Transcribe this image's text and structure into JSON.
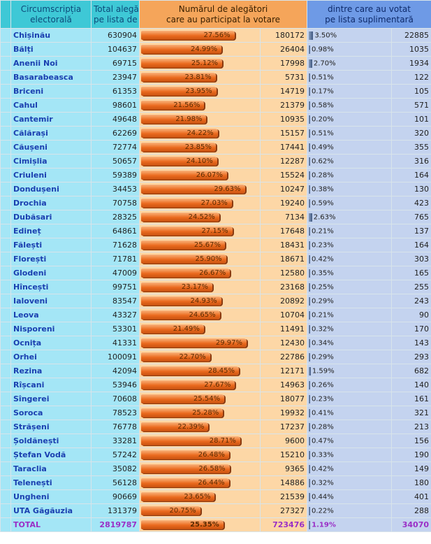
{
  "headers": {
    "district": [
      "Circumscripția",
      "electorală"
    ],
    "total": [
      "Total alegători",
      "pe lista de bază"
    ],
    "participated": [
      "Numărul de alegători",
      "care au participat la votare"
    ],
    "supplementary": [
      "dintre care au votat",
      "pe lista suplimentară"
    ]
  },
  "rows": [
    [
      "Chișinău",
      "630904",
      "27.56%",
      "180172",
      "3.50%",
      "22885"
    ],
    [
      "Bălți",
      "104637",
      "24.99%",
      "26404",
      "0.98%",
      "1035"
    ],
    [
      "Anenii Noi",
      "69715",
      "25.12%",
      "17998",
      "2.70%",
      "1934"
    ],
    [
      "Basarabeasca",
      "23947",
      "23.81%",
      "5731",
      "0.51%",
      "122"
    ],
    [
      "Briceni",
      "61353",
      "23.95%",
      "14719",
      "0.17%",
      "105"
    ],
    [
      "Cahul",
      "98601",
      "21.56%",
      "21379",
      "0.58%",
      "571"
    ],
    [
      "Cantemir",
      "49648",
      "21.98%",
      "10935",
      "0.20%",
      "101"
    ],
    [
      "Călărași",
      "62269",
      "24.22%",
      "15157",
      "0.51%",
      "320"
    ],
    [
      "Căușeni",
      "72774",
      "23.85%",
      "17441",
      "0.49%",
      "355"
    ],
    [
      "Cimișlia",
      "50657",
      "24.10%",
      "12287",
      "0.62%",
      "316"
    ],
    [
      "Criuleni",
      "59389",
      "26.07%",
      "15524",
      "0.28%",
      "164"
    ],
    [
      "Dondușeni",
      "34453",
      "29.63%",
      "10247",
      "0.38%",
      "130"
    ],
    [
      "Drochia",
      "70758",
      "27.03%",
      "19240",
      "0.59%",
      "423"
    ],
    [
      "Dubăsari",
      "28325",
      "24.52%",
      "7134",
      "2.63%",
      "765"
    ],
    [
      "Edineț",
      "64861",
      "27.15%",
      "17648",
      "0.21%",
      "137"
    ],
    [
      "Fălești",
      "71628",
      "25.67%",
      "18431",
      "0.23%",
      "164"
    ],
    [
      "Florești",
      "71781",
      "25.90%",
      "18671",
      "0.42%",
      "303"
    ],
    [
      "Glodeni",
      "47009",
      "26.67%",
      "12580",
      "0.35%",
      "165"
    ],
    [
      "Hîncești",
      "99751",
      "23.17%",
      "23168",
      "0.25%",
      "255"
    ],
    [
      "Ialoveni",
      "83547",
      "24.93%",
      "20892",
      "0.29%",
      "243"
    ],
    [
      "Leova",
      "43327",
      "24.65%",
      "10704",
      "0.21%",
      "90"
    ],
    [
      "Nisporeni",
      "53301",
      "21.49%",
      "11491",
      "0.32%",
      "170"
    ],
    [
      "Ocnița",
      "41331",
      "29.97%",
      "12430",
      "0.34%",
      "143"
    ],
    [
      "Orhei",
      "100091",
      "22.70%",
      "22786",
      "0.29%",
      "293"
    ],
    [
      "Rezina",
      "42094",
      "28.45%",
      "12171",
      "1.59%",
      "682"
    ],
    [
      "Rîșcani",
      "53946",
      "27.67%",
      "14963",
      "0.26%",
      "140"
    ],
    [
      "Sîngerei",
      "70608",
      "25.54%",
      "18077",
      "0.23%",
      "161"
    ],
    [
      "Soroca",
      "78523",
      "25.28%",
      "19932",
      "0.41%",
      "321"
    ],
    [
      "Strășeni",
      "76778",
      "22.39%",
      "17237",
      "0.28%",
      "213"
    ],
    [
      "Șoldănești",
      "33281",
      "28.71%",
      "9600",
      "0.47%",
      "156"
    ],
    [
      "Ștefan Vodă",
      "57242",
      "26.48%",
      "15210",
      "0.33%",
      "190"
    ],
    [
      "Taraclia",
      "35082",
      "26.58%",
      "9365",
      "0.42%",
      "149"
    ],
    [
      "Telenești",
      "56128",
      "26.44%",
      "14886",
      "0.32%",
      "180"
    ],
    [
      "Ungheni",
      "90669",
      "23.65%",
      "21539",
      "0.44%",
      "401"
    ],
    [
      "UTA Găgăuzia",
      "131379",
      "20.75%",
      "27327",
      "0.22%",
      "288"
    ]
  ],
  "total": [
    "TOTAL",
    "2819787",
    "25.35%",
    "723476",
    "1.19%",
    "34070"
  ],
  "colors": {
    "teal": "#3ec8d6",
    "orange": "#f5a55a",
    "blue": "#6e9ae6",
    "link": "#1a3fb0",
    "total": "#9a2fc6"
  }
}
